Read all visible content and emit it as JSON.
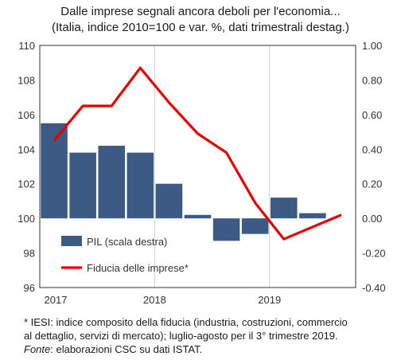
{
  "title": "Dalle imprese segnali ancora deboli per l'economia...",
  "subtitle": "(Italia, indice 2010=100 e var. %, dati trimestrali destag.)",
  "notes": {
    "line1": "* IESI: indice composito della fiducia (industria, costruzioni, commercio",
    "line2": "al dettaglio, servizi di mercato); luglio-agosto per il 3° trimestre 2019.",
    "source_label": "Fonte",
    "source_text": ": elaborazioni CSC su dati ISTAT."
  },
  "colors": {
    "bars": "#3d5a85",
    "line": "#e60000",
    "grid": "#d0d0d0",
    "axis": "#333333"
  },
  "chart_data": {
    "type": "bar+line",
    "x_quarters": [
      "2017 Q1",
      "2017 Q2",
      "2017 Q3",
      "2017 Q4",
      "2018 Q1",
      "2018 Q2",
      "2018 Q3",
      "2018 Q4",
      "2019 Q1",
      "2019 Q2",
      "2019 Q3"
    ],
    "x_tick_labels": [
      "2017",
      "2018",
      "2019"
    ],
    "y_left": {
      "min": 96,
      "max": 110,
      "ticks": [
        "96",
        "98",
        "100",
        "102",
        "104",
        "106",
        "108",
        "110"
      ]
    },
    "y_right": {
      "min": -0.4,
      "max": 1.0,
      "ticks": [
        "-0.40",
        "-0.20",
        "0.00",
        "0.20",
        "0.40",
        "0.60",
        "0.80",
        "1.00"
      ]
    },
    "grid": "vertical year separators",
    "legend_position": "bottom-left",
    "series": [
      {
        "name": "PIL (scala destra)",
        "kind": "bar",
        "axis": "right",
        "values": [
          0.55,
          0.38,
          0.42,
          0.38,
          0.2,
          0.02,
          -0.13,
          -0.09,
          0.12,
          0.03,
          null
        ]
      },
      {
        "name": "Fiducia delle imprese*",
        "kind": "line",
        "axis": "left",
        "values": [
          104.5,
          106.5,
          106.5,
          108.7,
          106.7,
          104.9,
          103.8,
          100.9,
          98.8,
          99.5,
          100.2
        ]
      }
    ]
  }
}
